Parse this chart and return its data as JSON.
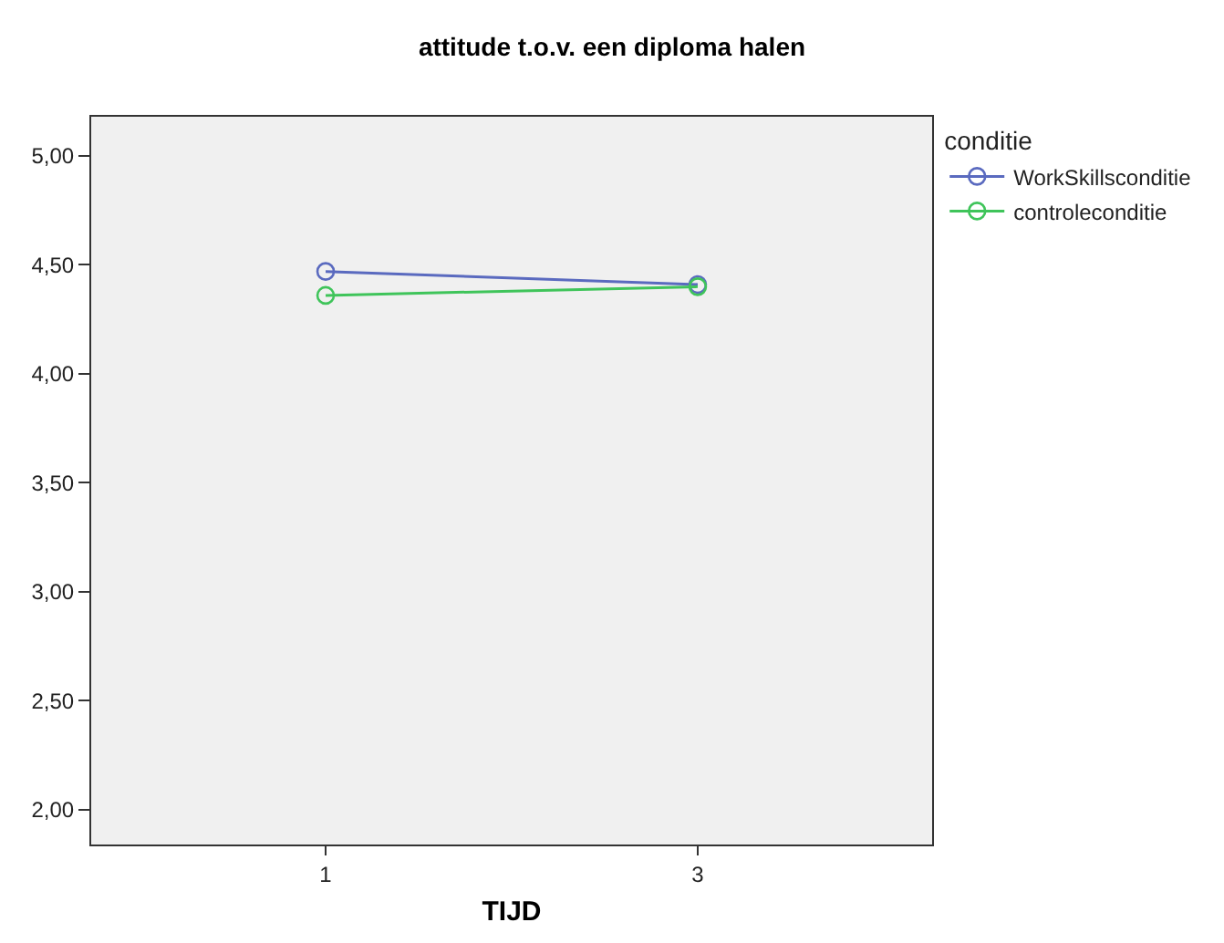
{
  "chart_data": {
    "type": "line",
    "title": "attitude t.o.v. een diploma halen",
    "xlabel": "TIJD",
    "legend_title": "conditie",
    "categories": [
      "1",
      "3"
    ],
    "series": [
      {
        "name": "WorkSkillsconditie",
        "color": "#5a6abf",
        "values": [
          4.47,
          4.41
        ]
      },
      {
        "name": "controleconditie",
        "color": "#3fc45a",
        "values": [
          4.36,
          4.4
        ]
      }
    ],
    "ylim": [
      1.84,
      5.18
    ],
    "yticks": [
      {
        "value": 2,
        "label": "2,00"
      },
      {
        "value": 2.5,
        "label": "2,50"
      },
      {
        "value": 3,
        "label": "3,00"
      },
      {
        "value": 3.5,
        "label": "3,50"
      },
      {
        "value": 4,
        "label": "4,00"
      },
      {
        "value": 4.5,
        "label": "4,50"
      },
      {
        "value": 5,
        "label": "5,00"
      }
    ],
    "marker": "circle",
    "line_style": "solid",
    "legend": "top right",
    "grid": false
  }
}
